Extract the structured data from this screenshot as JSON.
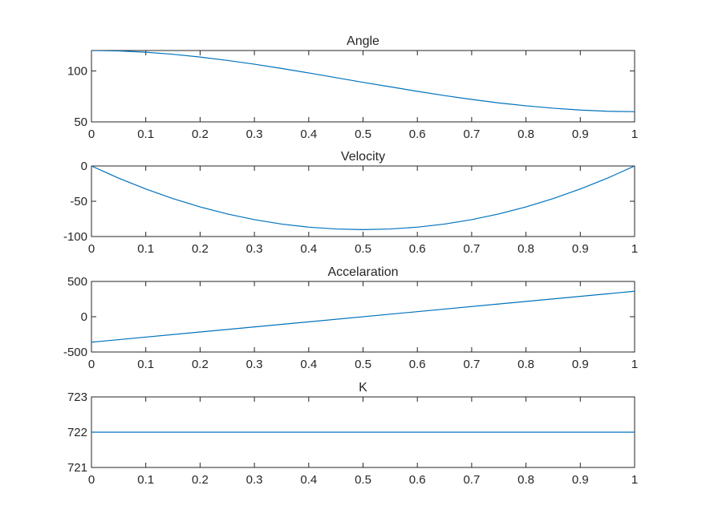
{
  "figure": {
    "background": "#ffffff",
    "axis_color": "#262626",
    "line_color": "#0072bd"
  },
  "chart_data": [
    {
      "type": "line",
      "title": "Angle",
      "xlabel": "",
      "ylabel": "",
      "xlim": [
        0,
        1
      ],
      "ylim": [
        50,
        120
      ],
      "xticks": [
        "0",
        "0.1",
        "0.2",
        "0.3",
        "0.4",
        "0.5",
        "0.6",
        "0.7",
        "0.8",
        "0.9",
        "1"
      ],
      "yticks": [
        "50",
        "100"
      ],
      "grid": false,
      "series": [
        {
          "x": [
            0,
            0.05,
            0.1,
            0.15,
            0.2,
            0.25,
            0.3,
            0.35,
            0.4,
            0.45,
            0.5,
            0.55,
            0.6,
            0.65,
            0.7,
            0.75,
            0.8,
            0.85,
            0.9,
            0.95,
            1
          ],
          "values": [
            120,
            119.6,
            118.3,
            116.3,
            113.6,
            110.3,
            106.6,
            102.4,
            98.0,
            93.4,
            88.8,
            84.4,
            80.0,
            75.8,
            72.0,
            68.6,
            65.8,
            63.4,
            61.6,
            60.4,
            60
          ]
        }
      ]
    },
    {
      "type": "line",
      "title": "Velocity",
      "xlabel": "",
      "ylabel": "",
      "xlim": [
        0,
        1
      ],
      "ylim": [
        -100,
        0
      ],
      "xticks": [
        "0",
        "0.1",
        "0.2",
        "0.3",
        "0.4",
        "0.5",
        "0.6",
        "0.7",
        "0.8",
        "0.9",
        "1"
      ],
      "yticks": [
        "-100",
        "-50",
        "0"
      ],
      "grid": false,
      "series": [
        {
          "x": [
            0,
            0.05,
            0.1,
            0.15,
            0.2,
            0.25,
            0.3,
            0.35,
            0.4,
            0.45,
            0.5,
            0.55,
            0.6,
            0.65,
            0.7,
            0.75,
            0.8,
            0.85,
            0.9,
            0.95,
            1
          ],
          "values": [
            0,
            -17.2,
            -32.6,
            -46.2,
            -58.0,
            -68.0,
            -76.1,
            -82.3,
            -86.7,
            -89.3,
            -90.2,
            -89.3,
            -86.7,
            -82.3,
            -76.1,
            -68.0,
            -58.0,
            -46.2,
            -32.6,
            -17.2,
            0
          ]
        }
      ]
    },
    {
      "type": "line",
      "title": "Accelaration",
      "xlabel": "",
      "ylabel": "",
      "xlim": [
        0,
        1
      ],
      "ylim": [
        -500,
        500
      ],
      "xticks": [
        "0",
        "0.1",
        "0.2",
        "0.3",
        "0.4",
        "0.5",
        "0.6",
        "0.7",
        "0.8",
        "0.9",
        "1"
      ],
      "yticks": [
        "-500",
        "0",
        "500"
      ],
      "grid": false,
      "series": [
        {
          "x": [
            0,
            1
          ],
          "values": [
            -361,
            361
          ]
        }
      ]
    },
    {
      "type": "line",
      "title": "K",
      "xlabel": "",
      "ylabel": "",
      "xlim": [
        0,
        1
      ],
      "ylim": [
        721,
        723
      ],
      "xticks": [
        "0",
        "0.1",
        "0.2",
        "0.3",
        "0.4",
        "0.5",
        "0.6",
        "0.7",
        "0.8",
        "0.9",
        "1"
      ],
      "yticks": [
        "721",
        "722",
        "723"
      ],
      "grid": false,
      "series": [
        {
          "x": [
            0,
            1
          ],
          "values": [
            722,
            722
          ]
        }
      ]
    }
  ]
}
